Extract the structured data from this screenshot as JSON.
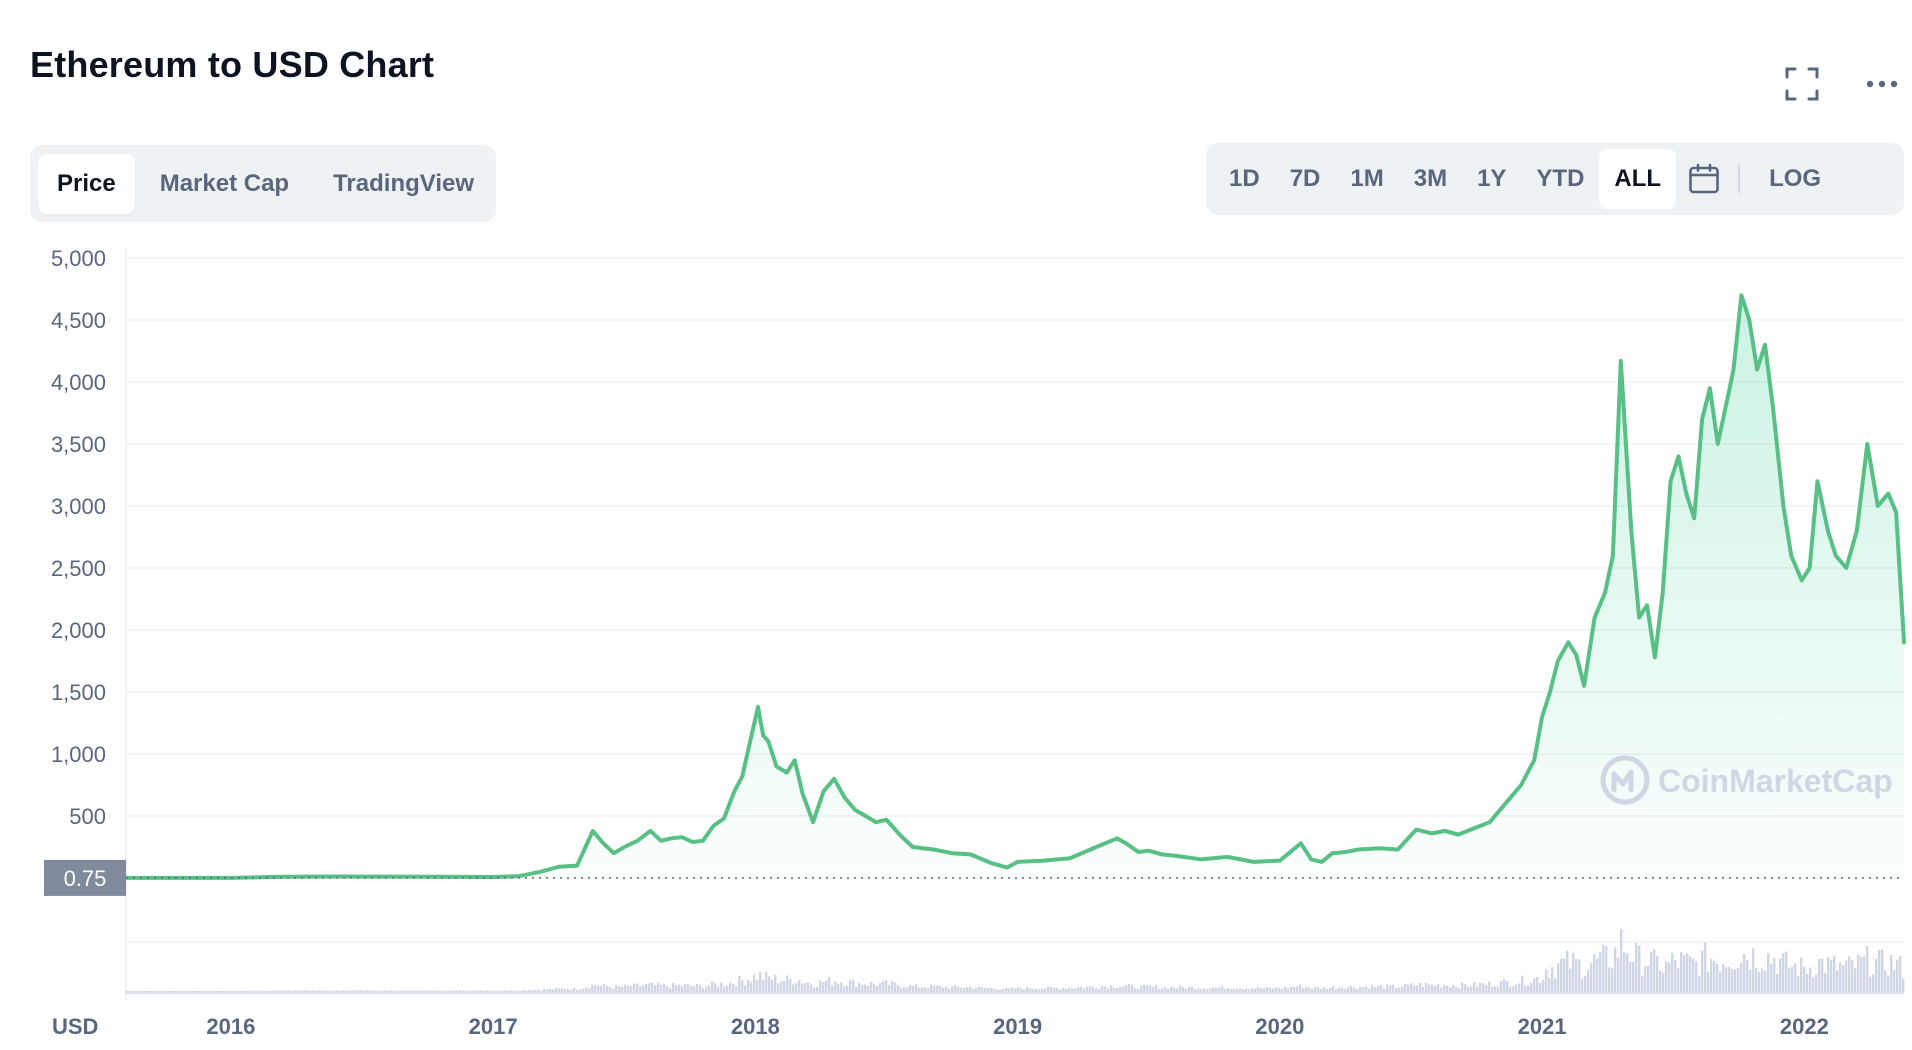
{
  "header": {
    "title": "Ethereum to USD Chart",
    "fullscreen_icon": "fullscreen-icon",
    "more_icon": "more-icon"
  },
  "tabs": [
    {
      "label": "Price",
      "active": true
    },
    {
      "label": "Market Cap",
      "active": false
    },
    {
      "label": "TradingView",
      "active": false
    }
  ],
  "ranges": [
    {
      "label": "1D",
      "active": false
    },
    {
      "label": "7D",
      "active": false
    },
    {
      "label": "1M",
      "active": false
    },
    {
      "label": "3M",
      "active": false
    },
    {
      "label": "1Y",
      "active": false
    },
    {
      "label": "YTD",
      "active": false
    },
    {
      "label": "ALL",
      "active": true
    }
  ],
  "range_extras": {
    "calendar_icon": "calendar-icon",
    "log_label": "LOG"
  },
  "watermark": "CoinMarketCap",
  "colors": {
    "line": "#58c085",
    "fill": "#16c784",
    "volume": "#cfd6e4",
    "grid": "#eff2f5",
    "price_tag_bg": "#808a9d",
    "text_muted": "#58667e"
  },
  "chart_data": {
    "type": "area",
    "title": "",
    "xlabel": "",
    "ylabel": "",
    "currency_label": "USD",
    "ylim": [
      0,
      5000
    ],
    "y_ticks": [
      "5,000",
      "4,500",
      "4,000",
      "3,500",
      "3,000",
      "2,500",
      "2,000",
      "1,500",
      "1,000",
      "500"
    ],
    "current_price_label": "0.75",
    "x_ticks": [
      "2016",
      "2017",
      "2018",
      "2019",
      "2020",
      "2021",
      "2022"
    ],
    "x_range": [
      2015.6,
      2022.38
    ],
    "grid": true,
    "series": [
      {
        "x": [
          2015.6,
          2015.8,
          2016.0,
          2016.2,
          2016.4,
          2016.6,
          2016.8,
          2017.0,
          2017.1,
          2017.18,
          2017.25,
          2017.32,
          2017.38,
          2017.42,
          2017.46,
          2017.5,
          2017.55,
          2017.6,
          2017.64,
          2017.68,
          2017.72,
          2017.76,
          2017.8,
          2017.84,
          2017.88,
          2017.92,
          2017.95,
          2017.98,
          2018.01,
          2018.03,
          2018.05,
          2018.08,
          2018.12,
          2018.15,
          2018.18,
          2018.22,
          2018.26,
          2018.3,
          2018.34,
          2018.38,
          2018.42,
          2018.46,
          2018.5,
          2018.55,
          2018.6,
          2018.68,
          2018.75,
          2018.82,
          2018.9,
          2018.96,
          2019.0,
          2019.1,
          2019.2,
          2019.3,
          2019.38,
          2019.42,
          2019.46,
          2019.5,
          2019.55,
          2019.6,
          2019.7,
          2019.8,
          2019.9,
          2020.0,
          2020.08,
          2020.12,
          2020.16,
          2020.2,
          2020.25,
          2020.3,
          2020.38,
          2020.45,
          2020.52,
          2020.58,
          2020.63,
          2020.68,
          2020.74,
          2020.8,
          2020.86,
          2020.92,
          2020.97,
          2021.0,
          2021.03,
          2021.06,
          2021.1,
          2021.13,
          2021.16,
          2021.2,
          2021.24,
          2021.27,
          2021.3,
          2021.34,
          2021.37,
          2021.4,
          2021.43,
          2021.46,
          2021.49,
          2021.52,
          2021.55,
          2021.58,
          2021.61,
          2021.64,
          2021.67,
          2021.7,
          2021.73,
          2021.76,
          2021.79,
          2021.82,
          2021.85,
          2021.88,
          2021.92,
          2021.95,
          2021.99,
          2022.02,
          2022.05,
          2022.09,
          2022.12,
          2022.16,
          2022.2,
          2022.24,
          2022.28,
          2022.32,
          2022.35,
          2022.38
        ],
        "values": [
          0.75,
          1,
          1,
          10,
          12,
          11,
          10,
          8,
          15,
          50,
          90,
          100,
          380,
          280,
          200,
          250,
          300,
          380,
          300,
          320,
          330,
          290,
          300,
          420,
          480,
          700,
          820,
          1100,
          1380,
          1150,
          1100,
          900,
          850,
          950,
          680,
          450,
          700,
          800,
          650,
          550,
          500,
          450,
          470,
          350,
          250,
          230,
          200,
          190,
          120,
          85,
          130,
          140,
          160,
          250,
          320,
          270,
          210,
          220,
          190,
          180,
          150,
          170,
          130,
          140,
          280,
          150,
          130,
          200,
          210,
          230,
          240,
          230,
          390,
          360,
          380,
          350,
          400,
          450,
          600,
          750,
          950,
          1300,
          1500,
          1750,
          1900,
          1800,
          1550,
          2100,
          2300,
          2600,
          4170,
          2800,
          2100,
          2200,
          1780,
          2300,
          3200,
          3400,
          3100,
          2900,
          3700,
          3950,
          3500,
          3800,
          4100,
          4700,
          4500,
          4100,
          4300,
          3800,
          3000,
          2600,
          2400,
          2500,
          3200,
          2800,
          2600,
          2500,
          2800,
          3500,
          3000,
          3100,
          2950,
          1900
        ]
      }
    ]
  }
}
